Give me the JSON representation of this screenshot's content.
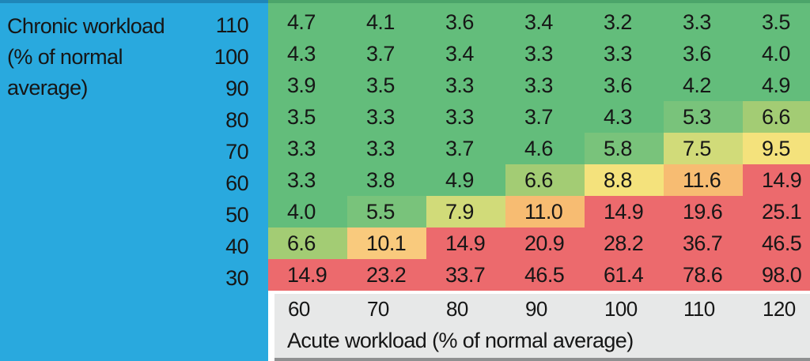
{
  "y_axis": {
    "title_lines": [
      "Chronic workload",
      "(% of normal",
      "average)"
    ],
    "tick_labels": [
      "110",
      "100",
      "90",
      "80",
      "70",
      "60",
      "50",
      "40",
      "30"
    ]
  },
  "x_axis": {
    "tick_labels": [
      "60",
      "70",
      "80",
      "90",
      "100",
      "110",
      "120"
    ],
    "title": "Acute workload (% of normal average)"
  },
  "chart_data": {
    "type": "heatmap",
    "title": "",
    "xlabel": "Acute workload (% of normal average)",
    "ylabel": "Chronic workload (% of normal average)",
    "x": [
      60,
      70,
      80,
      90,
      100,
      110,
      120
    ],
    "y": [
      110,
      100,
      90,
      80,
      70,
      60,
      50,
      40,
      30
    ],
    "values": [
      [
        4.7,
        4.1,
        3.6,
        3.4,
        3.2,
        3.3,
        3.5
      ],
      [
        4.3,
        3.7,
        3.4,
        3.3,
        3.3,
        3.6,
        4.0
      ],
      [
        3.9,
        3.5,
        3.3,
        3.3,
        3.6,
        4.2,
        4.9
      ],
      [
        3.5,
        3.3,
        3.3,
        3.7,
        4.3,
        5.3,
        6.6
      ],
      [
        3.3,
        3.3,
        3.7,
        4.6,
        5.8,
        7.5,
        9.5
      ],
      [
        3.3,
        3.8,
        4.9,
        6.6,
        8.8,
        11.6,
        14.9
      ],
      [
        4.0,
        5.5,
        7.9,
        11.0,
        14.9,
        19.6,
        25.1
      ],
      [
        6.6,
        10.1,
        14.9,
        20.9,
        28.2,
        36.7,
        46.5
      ],
      [
        14.9,
        23.2,
        33.7,
        46.5,
        61.4,
        78.6,
        98.0
      ]
    ],
    "value_decimals": 1,
    "legend_position": "none",
    "grid": false,
    "color_scale": [
      {
        "upto": 5.0,
        "color": "#63BD7B"
      },
      {
        "upto": 6.0,
        "color": "#79C37B"
      },
      {
        "upto": 7.0,
        "color": "#A3CC74"
      },
      {
        "upto": 8.2,
        "color": "#D1DB79"
      },
      {
        "upto": 10.0,
        "color": "#F4E27C"
      },
      {
        "upto": 10.5,
        "color": "#F9CA7D"
      },
      {
        "upto": 13.0,
        "color": "#F7BC72"
      },
      {
        "upto": 10000,
        "color": "#EC6A6D"
      }
    ]
  },
  "colors": {
    "panel_blue": "#29A9DE",
    "panel_blue_edge": "#1F86B8",
    "grid_top_edge": "#4CA56A",
    "footer_gray": "#E7E8E8",
    "footer_bottom_edge": "#8F9091",
    "text": "#161616"
  }
}
